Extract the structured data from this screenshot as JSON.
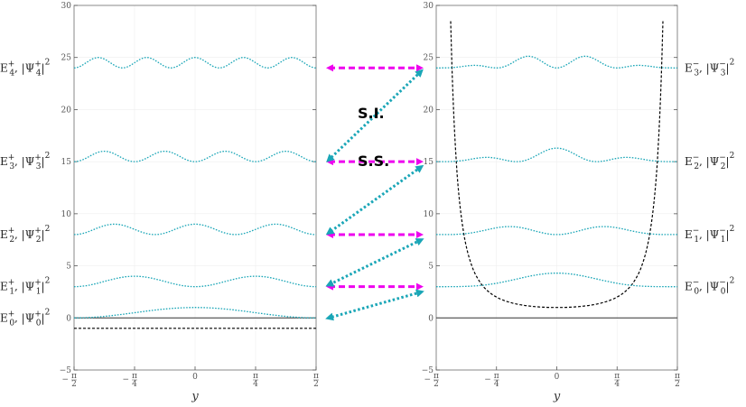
{
  "colors": {
    "wave": "#1aa6b7",
    "potential": "#000000",
    "partner_arrow": "#ee00ee",
    "shift_arrow": "#1aa6b7",
    "frame": "#888888",
    "grid": "#eeeeee"
  },
  "axes": {
    "ylim": [
      -5,
      30
    ],
    "yticks": [
      "30",
      "25",
      "20",
      "15",
      "10",
      "5",
      "0",
      "−5"
    ],
    "xtick_nums": [
      "π",
      "π",
      "0",
      "π",
      "π"
    ],
    "xtick_signs": [
      "−",
      "−",
      "",
      "",
      ""
    ],
    "xtick_dens": [
      "2",
      "4",
      "",
      "4",
      "2"
    ],
    "xlabel": "y"
  },
  "left_panel": {
    "levels": [
      {
        "E": "E",
        "Esub": "0",
        "Esup": "+",
        "Psi": "Ψ",
        "Psub": "0",
        "Psup": "+",
        "pow": "2",
        "energy": 0
      },
      {
        "E": "E",
        "Esub": "1",
        "Esup": "+",
        "Psi": "Ψ",
        "Psub": "1",
        "Psup": "+",
        "pow": "2",
        "energy": 3
      },
      {
        "E": "E",
        "Esub": "2",
        "Esup": "+",
        "Psi": "Ψ",
        "Psub": "2",
        "Psup": "+",
        "pow": "2",
        "energy": 8
      },
      {
        "E": "E",
        "Esub": "3",
        "Esup": "+",
        "Psi": "Ψ",
        "Psub": "3",
        "Psup": "+",
        "pow": "2",
        "energy": 15
      },
      {
        "E": "E",
        "Esub": "4",
        "Esup": "+",
        "Psi": "Ψ",
        "Psub": "4",
        "Psup": "+",
        "pow": "2",
        "energy": 24
      }
    ],
    "potential_const": -1
  },
  "right_panel": {
    "levels": [
      {
        "E": "E",
        "Esub": "0",
        "Esup": "−",
        "Psi": "Ψ",
        "Psub": "0",
        "Psup": "−",
        "pow": "2",
        "energy": 3
      },
      {
        "E": "E",
        "Esub": "1",
        "Esup": "−",
        "Psi": "Ψ",
        "Psub": "1",
        "Psup": "−",
        "pow": "2",
        "energy": 8
      },
      {
        "E": "E",
        "Esub": "2",
        "Esup": "−",
        "Psi": "Ψ",
        "Psub": "2",
        "Psup": "−",
        "pow": "2",
        "energy": 15
      },
      {
        "E": "E",
        "Esub": "3",
        "Esup": "−",
        "Psi": "Ψ",
        "Psub": "3",
        "Psup": "−",
        "pow": "2",
        "energy": 24
      }
    ],
    "potential": "sec^2"
  },
  "annotations": {
    "si": "S.I.",
    "ss": "S.S."
  }
}
